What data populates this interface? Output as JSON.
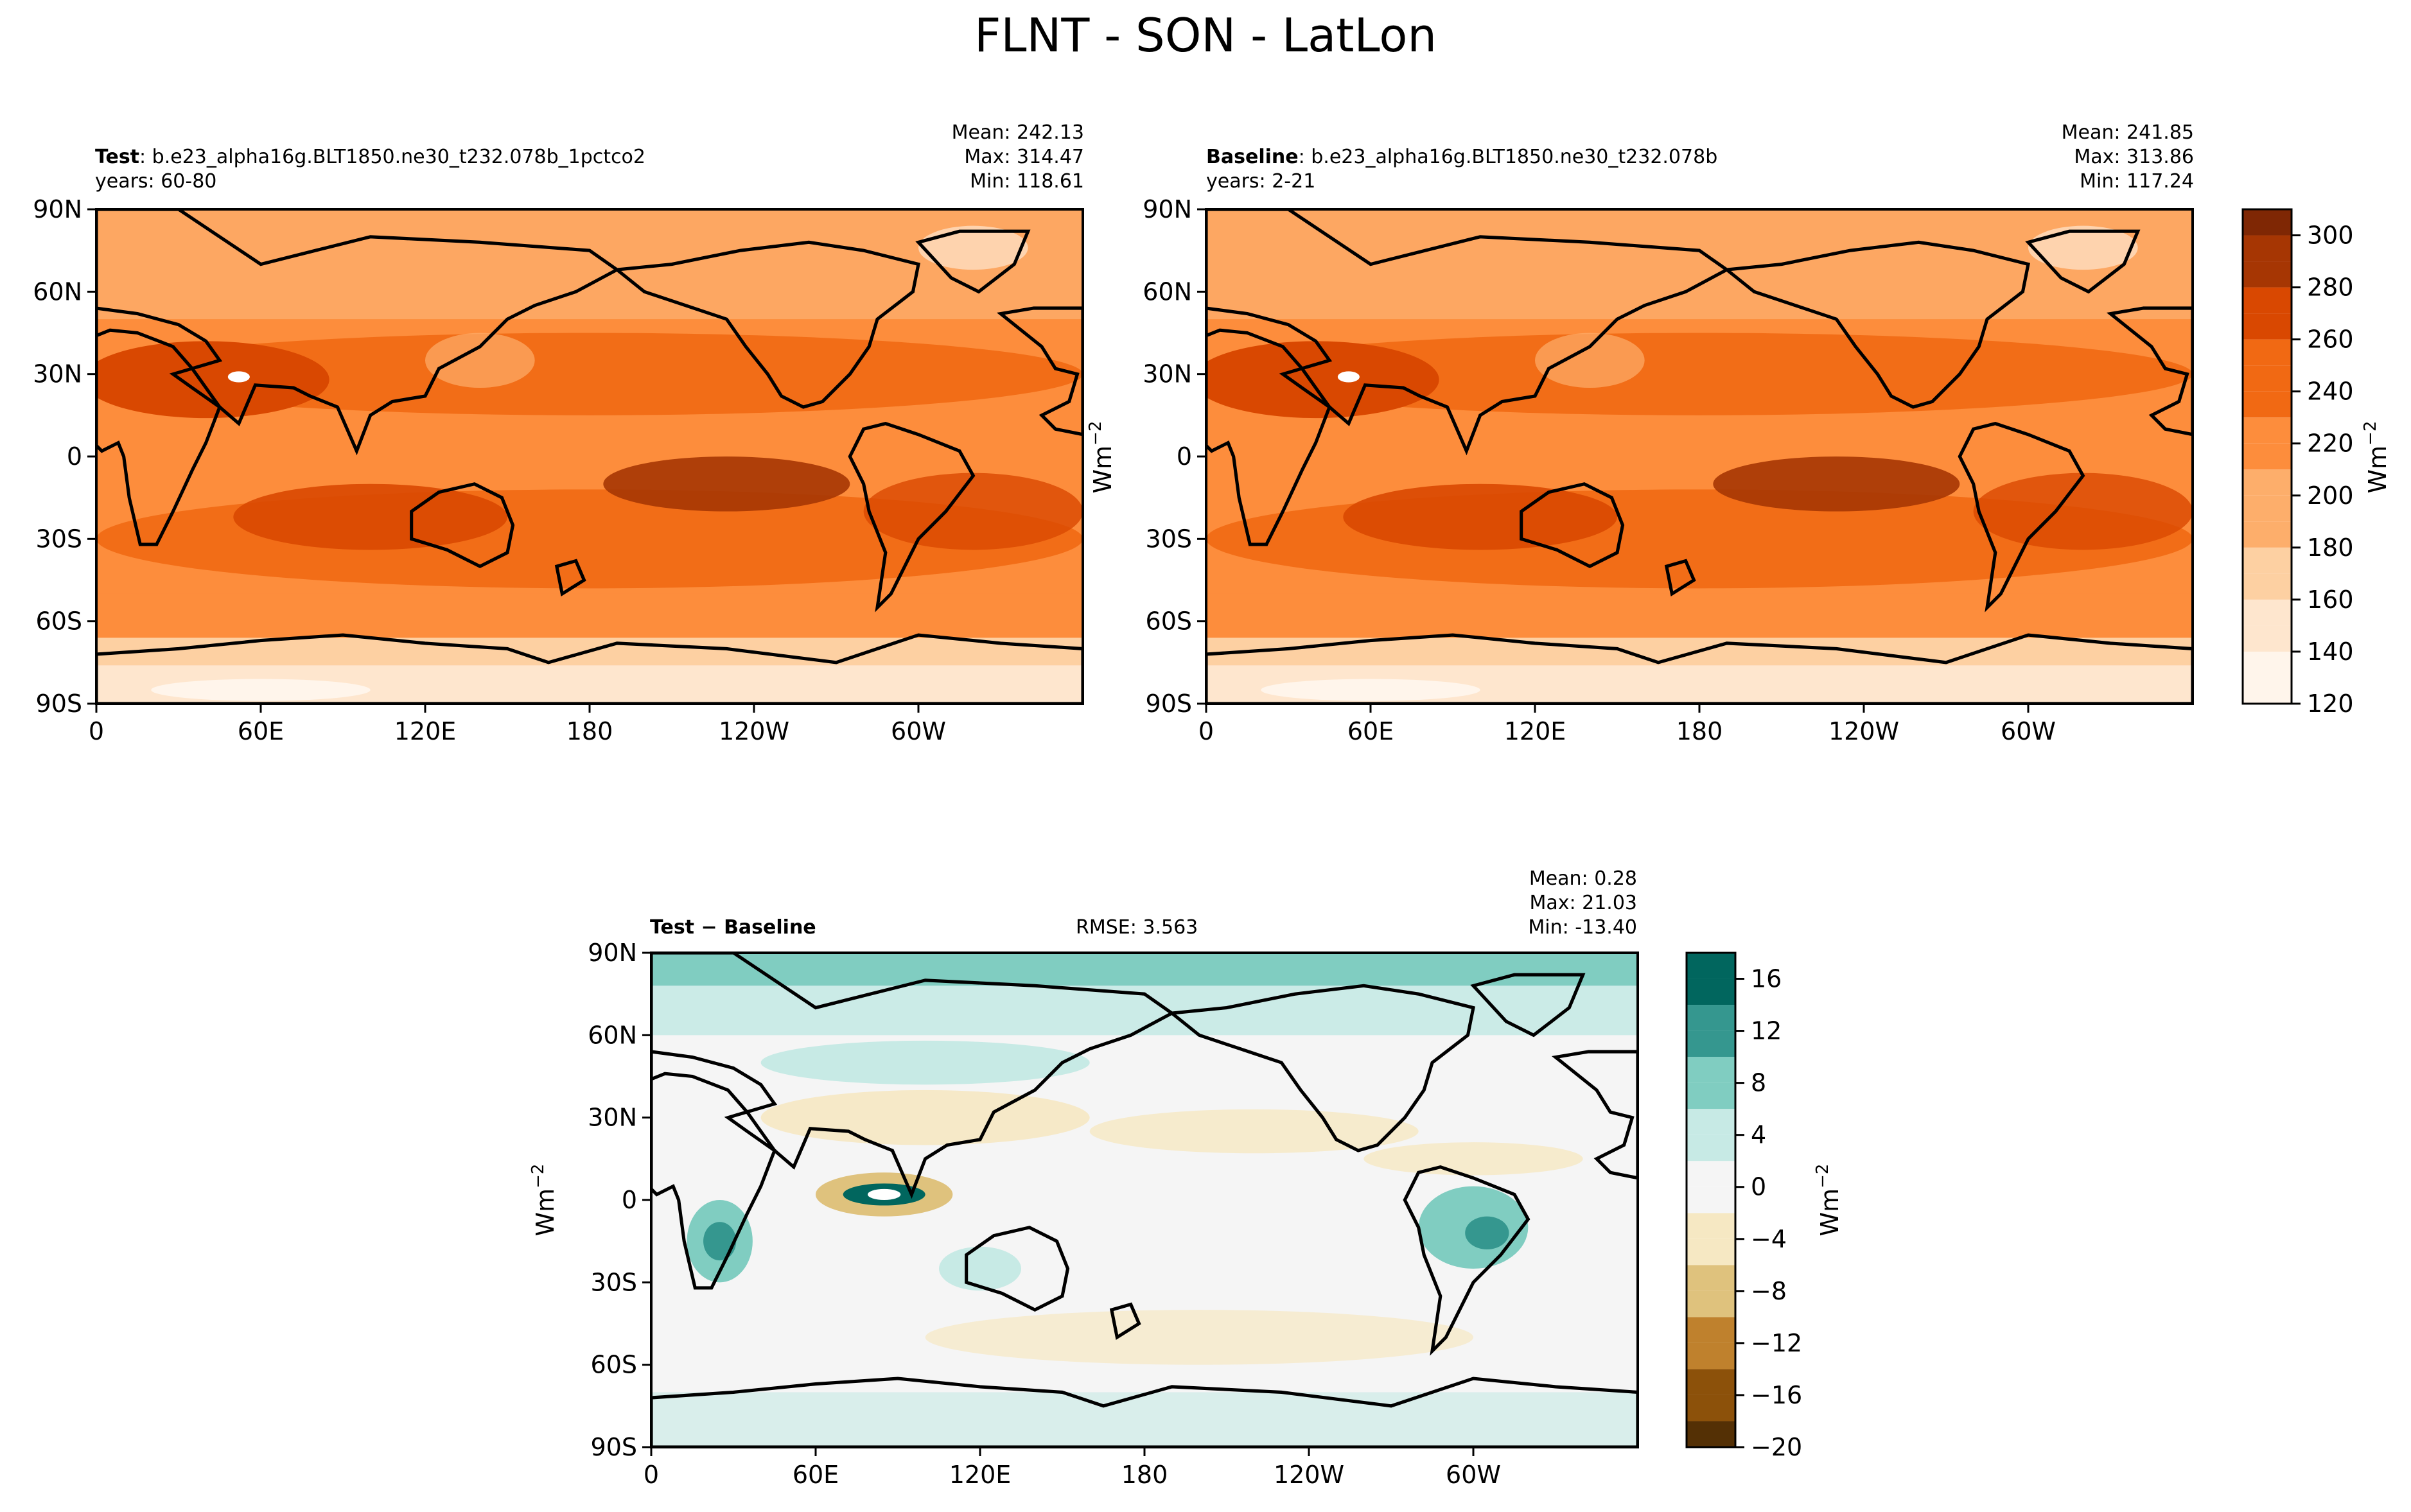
{
  "suptitle": "FLNT - SON - LatLon",
  "colors": {
    "orange_ramp": [
      "#fff5eb",
      "#fee6ce",
      "#fdd0a2",
      "#fdae6b",
      "#fd8d3c",
      "#f16913",
      "#d94801",
      "#a63603",
      "#7f2704"
    ],
    "diff_ramp": [
      "#543005",
      "#8c510a",
      "#bf812d",
      "#dfc27d",
      "#f6e8c3",
      "#f5f5f5",
      "#c7eae5",
      "#80cdc1",
      "#35978f",
      "#01665e",
      "#003c30"
    ],
    "coast": "#000000",
    "missing": "#ffffff"
  },
  "panels": {
    "test": {
      "label_bold": "Test",
      "label_rest": ": b.e23_alpha16g.BLT1850.ne30_t232.078b_1pctco2",
      "years": "years: 60-80",
      "mean": "Mean: 242.13",
      "max": "Max: 314.47",
      "min": "Min: 118.61"
    },
    "baseline": {
      "label_bold": "Baseline",
      "label_rest": ": b.e23_alpha16g.BLT1850.ne30_t232.078b",
      "years": "years: 2-21",
      "mean": "Mean: 241.85",
      "max": "Max: 313.86",
      "min": "Min: 117.24"
    },
    "diff": {
      "label_bold_1": "Test",
      "label_sep": " − ",
      "label_bold_2": "Baseline",
      "rmse": "RMSE: 3.563",
      "mean": "Mean:  0.28",
      "max": "Max: 21.03",
      "min": "Min: -13.40"
    }
  },
  "units_label": "Wm",
  "units_exp": "−2",
  "chart_data": [
    {
      "type": "heatmap",
      "name": "Test",
      "xlabel": "",
      "ylabel": "",
      "x_ticks": [
        "0",
        "60E",
        "120E",
        "180",
        "120W",
        "60W"
      ],
      "y_ticks": [
        "90N",
        "60N",
        "30N",
        "0",
        "30S",
        "60S",
        "90S"
      ],
      "xlim": [
        0,
        360
      ],
      "ylim": [
        -90,
        90
      ],
      "stats": {
        "mean": 242.13,
        "max": 314.47,
        "min": 118.61
      },
      "colorbar": {
        "levels": [
          120,
          130,
          140,
          150,
          160,
          170,
          180,
          190,
          200,
          210,
          220,
          230,
          240,
          250,
          260,
          270,
          280,
          290,
          300,
          310
        ],
        "ticks": [
          "120",
          "140",
          "160",
          "180",
          "200",
          "220",
          "240",
          "260",
          "280",
          "300"
        ],
        "label": "Wm−2"
      }
    },
    {
      "type": "heatmap",
      "name": "Baseline",
      "xlabel": "",
      "ylabel": "",
      "x_ticks": [
        "0",
        "60E",
        "120E",
        "180",
        "120W",
        "60W"
      ],
      "y_ticks": [
        "90N",
        "60N",
        "30N",
        "0",
        "30S",
        "60S",
        "90S"
      ],
      "xlim": [
        0,
        360
      ],
      "ylim": [
        -90,
        90
      ],
      "stats": {
        "mean": 241.85,
        "max": 313.86,
        "min": 117.24
      }
    },
    {
      "type": "heatmap",
      "name": "Test − Baseline",
      "x_ticks": [
        "0",
        "60E",
        "120E",
        "180",
        "120W",
        "60W"
      ],
      "y_ticks": [
        "90N",
        "60N",
        "30N",
        "0",
        "30S",
        "60S",
        "90S"
      ],
      "xlim": [
        0,
        360
      ],
      "ylim": [
        -90,
        90
      ],
      "stats": {
        "mean": 0.28,
        "max": 21.03,
        "min": -13.4,
        "rmse": 3.563
      },
      "colorbar": {
        "levels": [
          -20,
          -18,
          -16,
          -14,
          -12,
          -10,
          -8,
          -6,
          -4,
          -2,
          0,
          2,
          4,
          6,
          8,
          10,
          12,
          14,
          16,
          18
        ],
        "ticks": [
          "−20",
          "−16",
          "−12",
          "−8",
          "−4",
          "0",
          "4",
          "8",
          "12",
          "16"
        ],
        "label": "Wm−2"
      }
    }
  ]
}
